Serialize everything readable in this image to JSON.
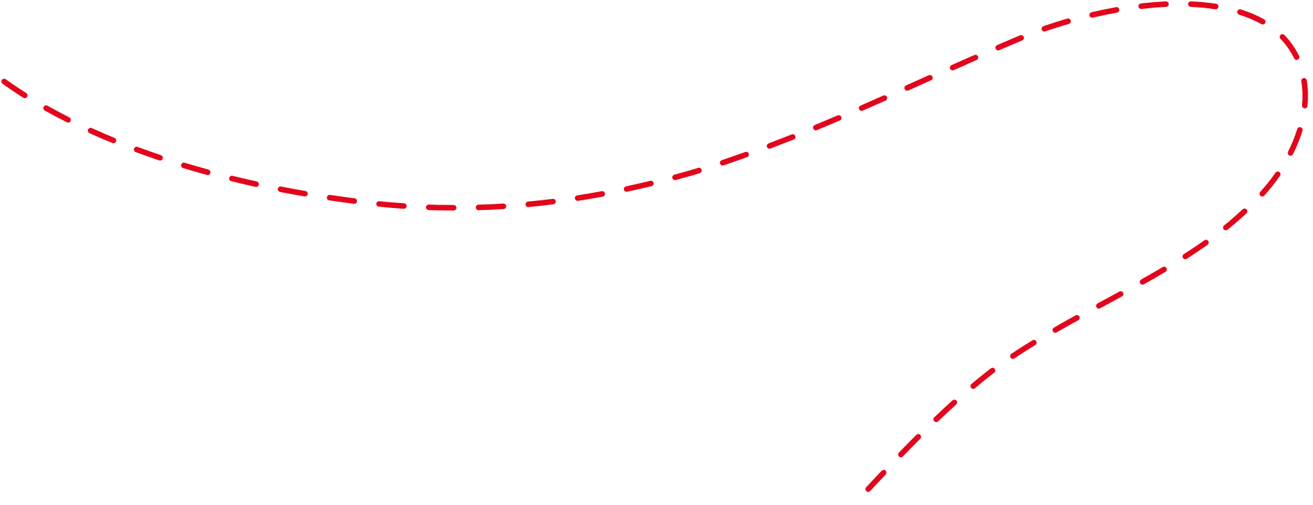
{
  "illustration": {
    "name": "dashed-route-line",
    "stroke_color": "#e3051b",
    "background_color": "#ffffff"
  }
}
